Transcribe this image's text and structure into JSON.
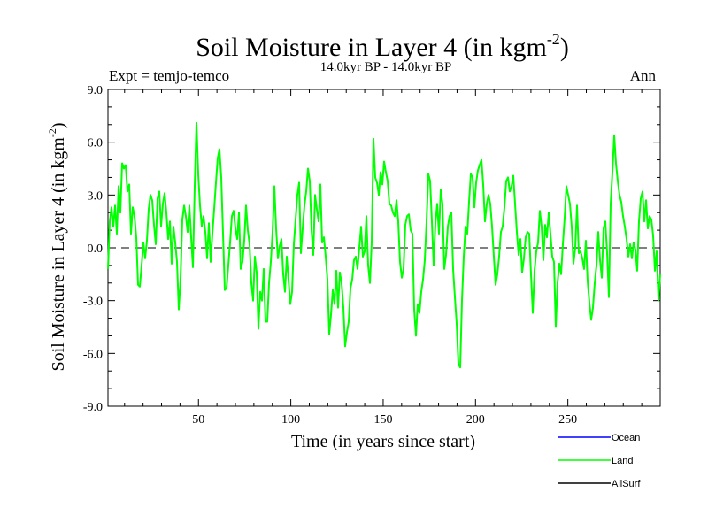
{
  "chart_data": {
    "type": "line",
    "title": "Soil Moisture in Layer 4 (in kgm",
    "title_exponent": "-2",
    "title_close": ")",
    "subtitle": "14.0kyr BP - 14.0kyr BP",
    "left_label": "Expt = temjo-temco",
    "right_label": "Ann",
    "xlabel": "Time (in years since start)",
    "ylabel": "Soil Moisture in Layer 4 (in kgm",
    "ylabel_exponent": "-2",
    "ylabel_close": ")",
    "xlim": [
      1,
      300
    ],
    "ylim": [
      -9,
      9
    ],
    "x_ticks": [
      50,
      100,
      150,
      200,
      250
    ],
    "x_tick_labels": [
      "50",
      "100",
      "150",
      "200",
      "250"
    ],
    "y_ticks": [
      -9,
      -6,
      -3,
      0,
      3,
      6,
      9
    ],
    "y_tick_labels": [
      "-9.0",
      "-6.0",
      "-3.0",
      "0.0",
      "3.0",
      "6.0",
      "9.0"
    ],
    "zero_line": true,
    "colors": {
      "ocean": "#0000ff",
      "land": "#00ff00",
      "allsurf": "#000000"
    },
    "legend": [
      {
        "name": "Ocean",
        "color": "#0000ff"
      },
      {
        "name": "Land",
        "color": "#00ff00"
      },
      {
        "name": "AllSurf",
        "color": "#000000"
      }
    ],
    "series": [
      {
        "name": "Land",
        "color": "#00ff00",
        "x_start": 1,
        "values": [
          -1.2,
          1.5,
          2.3,
          1.2,
          2.4,
          0.8,
          3.5,
          2.0,
          4.8,
          4.5,
          4.7,
          3.2,
          3.6,
          0.8,
          2.3,
          1.8,
          0.6,
          -2.1,
          -2.2,
          -1.0,
          0.3,
          -0.6,
          0.4,
          2.2,
          3.0,
          2.7,
          1.3,
          0.2,
          2.8,
          3.2,
          1.2,
          2.5,
          3.1,
          2.0,
          0.5,
          1.5,
          -0.9,
          1.2,
          0.3,
          -0.8,
          -3.5,
          -1.8,
          1.6,
          2.4,
          1.8,
          0.9,
          2.4,
          0.6,
          -1.1,
          3.5,
          7.1,
          4.2,
          2.4,
          1.2,
          1.8,
          0.9,
          -0.6,
          1.4,
          -0.8,
          0.8,
          2.2,
          3.7,
          5.1,
          5.6,
          4.0,
          0.8,
          -2.4,
          -2.3,
          -1.0,
          0.3,
          1.8,
          2.1,
          1.1,
          0.5,
          2.0,
          -1.2,
          -0.8,
          0.4,
          2.4,
          1.0,
          0.2,
          -2.0,
          -3.0,
          -0.5,
          -1.4,
          -4.6,
          -2.5,
          -3.0,
          -1.2,
          -4.2,
          -4.2,
          -2.0,
          -0.8,
          0.9,
          3.5,
          1.1,
          -0.6,
          0.1,
          0.5,
          -1.5,
          -2.5,
          -0.5,
          -1.8,
          -3.2,
          -2.5,
          0.2,
          1.6,
          3.0,
          3.7,
          -0.3,
          1.1,
          2.4,
          3.2,
          4.5,
          3.8,
          1.0,
          -0.4,
          3.0,
          2.2,
          1.5,
          3.6,
          0.3,
          0.6,
          -0.5,
          -1.8,
          -4.9,
          -3.8,
          -2.4,
          -3.2,
          -1.3,
          -3.4,
          -1.4,
          -2.0,
          -3.4,
          -5.6,
          -4.8,
          -4.2,
          -2.3,
          -1.8,
          -0.7,
          -0.5,
          -1.2,
          0.0,
          1.2,
          -0.5,
          -0.2,
          1.8,
          -1.0,
          -2.0,
          0.3,
          6.2,
          4.0,
          3.7,
          3.0,
          4.3,
          3.6,
          4.9,
          4.3,
          3.8,
          2.5,
          2.4,
          2.0,
          1.8,
          2.7,
          1.5,
          -0.8,
          -1.7,
          -1.2,
          1.3,
          1.8,
          1.9,
          1.0,
          0.8,
          -3.5,
          -5.0,
          -3.2,
          -3.7,
          -2.5,
          -1.8,
          -0.7,
          1.5,
          4.2,
          3.8,
          1.5,
          -1.0,
          1.4,
          2.5,
          0.8,
          3.3,
          2.5,
          -1.2,
          -0.4,
          1.2,
          1.8,
          2.0,
          -1.2,
          -2.8,
          -4.3,
          -6.6,
          -6.8,
          -3.0,
          -0.5,
          1.2,
          0.8,
          2.6,
          4.2,
          4.0,
          2.3,
          3.7,
          4.4,
          4.7,
          5.0,
          3.6,
          1.5,
          2.5,
          3.0,
          2.5,
          1.2,
          -0.5,
          -2.1,
          -1.5,
          -0.5,
          0.9,
          1.2,
          2.3,
          3.8,
          4.0,
          3.2,
          3.5,
          4.1,
          2.5,
          0.9,
          -0.4,
          0.5,
          -1.4,
          -0.6,
          0.6,
          0.9,
          0.8,
          -1.5,
          -3.7,
          -1.3,
          -0.2,
          0.3,
          2.1,
          1.2,
          -0.7,
          1.3,
          0.6,
          2.0,
          0.8,
          -0.5,
          -0.8,
          -4.5,
          -2.0,
          -0.9,
          -1.5,
          0.2,
          1.7,
          3.5,
          3.0,
          2.5,
          1.2,
          -0.9,
          0.0,
          2.4,
          -0.3,
          -0.2,
          -0.6,
          -1.2,
          0.4,
          -1.9,
          -3.1,
          -4.1,
          -3.4,
          -2.0,
          -1.0,
          0.9,
          -0.7,
          -1.7,
          1.1,
          1.5,
          -0.3,
          -2.8,
          2.5,
          4.3,
          6.4,
          4.8,
          3.8,
          3.0,
          2.6,
          1.8,
          1.2,
          0.5,
          -0.5,
          0.2,
          -0.6,
          0.3,
          -0.1,
          -1.3,
          1.5,
          2.8,
          3.2,
          1.5,
          2.7,
          1.1,
          1.8,
          1.6,
          0.7,
          -1.3,
          -0.2,
          -3.0,
          -1.5
        ]
      }
    ]
  }
}
